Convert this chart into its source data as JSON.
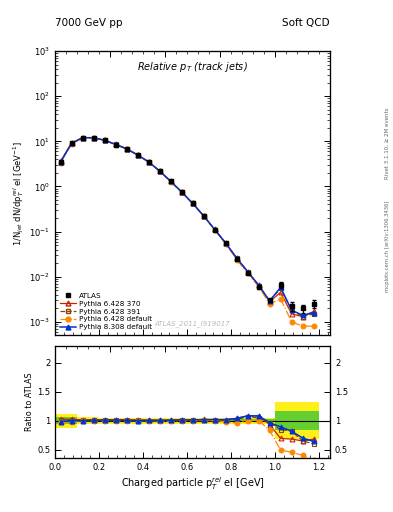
{
  "title_top_left": "7000 GeV pp",
  "title_top_right": "Soft QCD",
  "plot_title": "Relative p$_T$$_{\\,(track\\,jets)}$",
  "ylabel_main": "1/N$_{jet}$ dN/dp$^{rel}_{T}$ el [GeV$^{-1}$]",
  "ylabel_ratio": "Ratio to ATLAS",
  "xlabel": "Charged particle p$^{rel}_{T}$ el [GeV]",
  "right_label_top": "Rivet 3.1.10, ≥ 2M events",
  "right_label_bot": "mcplots.cern.ch [arXiv:1306.3436]",
  "watermark": "ATLAS_2011_I919017",
  "xlim": [
    0.0,
    1.25
  ],
  "ylim_main": [
    0.0005,
    1000.0
  ],
  "ylim_ratio": [
    0.35,
    2.3
  ],
  "x_data": [
    0.025,
    0.075,
    0.125,
    0.175,
    0.225,
    0.275,
    0.325,
    0.375,
    0.425,
    0.475,
    0.525,
    0.575,
    0.625,
    0.675,
    0.725,
    0.775,
    0.825,
    0.875,
    0.925,
    0.975,
    1.025,
    1.075,
    1.125,
    1.175
  ],
  "atlas_y": [
    3.5,
    9.0,
    12.0,
    12.0,
    10.5,
    8.5,
    6.8,
    5.0,
    3.5,
    2.2,
    1.3,
    0.75,
    0.42,
    0.22,
    0.11,
    0.055,
    0.025,
    0.012,
    0.006,
    0.003,
    0.0065,
    0.0022,
    0.002,
    0.0025
  ],
  "atlas_yerr": [
    0.3,
    0.5,
    0.6,
    0.6,
    0.5,
    0.4,
    0.3,
    0.25,
    0.18,
    0.11,
    0.07,
    0.04,
    0.022,
    0.012,
    0.006,
    0.003,
    0.0015,
    0.0007,
    0.0004,
    0.0002,
    0.001,
    0.0005,
    0.0004,
    0.0005
  ],
  "pythia_370_y": [
    3.6,
    9.2,
    12.2,
    12.1,
    10.6,
    8.6,
    6.9,
    5.05,
    3.52,
    2.21,
    1.31,
    0.76,
    0.425,
    0.225,
    0.112,
    0.056,
    0.026,
    0.013,
    0.0065,
    0.0028,
    0.0045,
    0.0015,
    0.0013,
    0.0017
  ],
  "pythia_391_y": [
    3.55,
    9.1,
    12.1,
    12.05,
    10.55,
    8.55,
    6.85,
    5.02,
    3.51,
    2.2,
    1.3,
    0.755,
    0.422,
    0.223,
    0.111,
    0.055,
    0.0255,
    0.0128,
    0.0063,
    0.0029,
    0.0055,
    0.0018,
    0.0013,
    0.0015
  ],
  "pythia_def428_y": [
    3.4,
    8.8,
    12.0,
    12.0,
    10.5,
    8.5,
    6.8,
    5.0,
    3.5,
    2.19,
    1.29,
    0.75,
    0.42,
    0.221,
    0.11,
    0.054,
    0.024,
    0.012,
    0.006,
    0.0025,
    0.0032,
    0.001,
    0.0008,
    0.0008
  ],
  "pythia_def830_y": [
    3.45,
    9.0,
    12.0,
    12.1,
    10.6,
    8.6,
    6.85,
    5.0,
    3.52,
    2.21,
    1.31,
    0.76,
    0.425,
    0.224,
    0.112,
    0.056,
    0.026,
    0.013,
    0.0065,
    0.0029,
    0.0058,
    0.0018,
    0.0014,
    0.0016
  ],
  "atlas_band_yellow": [
    0.12,
    0.12,
    0.06,
    0.06,
    0.05,
    0.05,
    0.05,
    0.05,
    0.05,
    0.05,
    0.05,
    0.05,
    0.05,
    0.05,
    0.05,
    0.05,
    0.05,
    0.05,
    0.05,
    0.05,
    0.32,
    0.32,
    0.32,
    0.32
  ],
  "atlas_band_green": [
    0.06,
    0.06,
    0.03,
    0.03,
    0.025,
    0.025,
    0.025,
    0.025,
    0.025,
    0.025,
    0.025,
    0.025,
    0.025,
    0.025,
    0.025,
    0.025,
    0.025,
    0.025,
    0.025,
    0.025,
    0.16,
    0.16,
    0.16,
    0.16
  ],
  "color_370": "#cc2200",
  "color_391": "#884400",
  "color_def428": "#ff8800",
  "color_def830": "#0033cc",
  "color_atlas": "#000000",
  "bin_width": 0.05
}
